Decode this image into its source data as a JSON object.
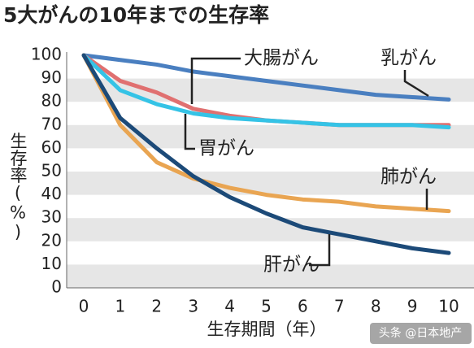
{
  "chart_data": {
    "type": "line",
    "title": "5大がんの10年までの生存率",
    "ylabel": "生存率(%)",
    "xlabel": "生存期間（年）",
    "x": [
      0,
      1,
      2,
      3,
      4,
      5,
      6,
      7,
      8,
      9,
      10
    ],
    "xlim": [
      0,
      10
    ],
    "xticks": [
      0,
      1,
      2,
      3,
      4,
      5,
      6,
      7,
      8,
      9,
      10
    ],
    "ylim": [
      0,
      100
    ],
    "yticks": [
      0,
      10,
      20,
      30,
      40,
      50,
      60,
      70,
      80,
      90,
      100
    ],
    "grid": true,
    "watermark": "头条 @日本地产",
    "series": [
      {
        "name": "乳がん",
        "color": "#4a7fc0",
        "values": [
          100,
          98,
          96,
          93,
          91,
          89,
          87,
          85,
          83,
          82,
          81
        ]
      },
      {
        "name": "大腸がん",
        "color": "#e07070",
        "values": [
          100,
          89,
          84,
          77,
          74,
          72,
          71,
          70,
          70,
          70,
          70
        ]
      },
      {
        "name": "胃がん",
        "color": "#35c3e6",
        "values": [
          100,
          85,
          79,
          75,
          73,
          72,
          71,
          70,
          70,
          70,
          69
        ]
      },
      {
        "name": "肺がん",
        "color": "#e9a552",
        "values": [
          100,
          70,
          54,
          47,
          43,
          40,
          38,
          37,
          35,
          34,
          33
        ]
      },
      {
        "name": "肝がん",
        "color": "#1c4a78",
        "values": [
          100,
          73,
          60,
          48,
          39,
          32,
          26,
          23,
          20,
          17,
          15
        ]
      }
    ]
  }
}
